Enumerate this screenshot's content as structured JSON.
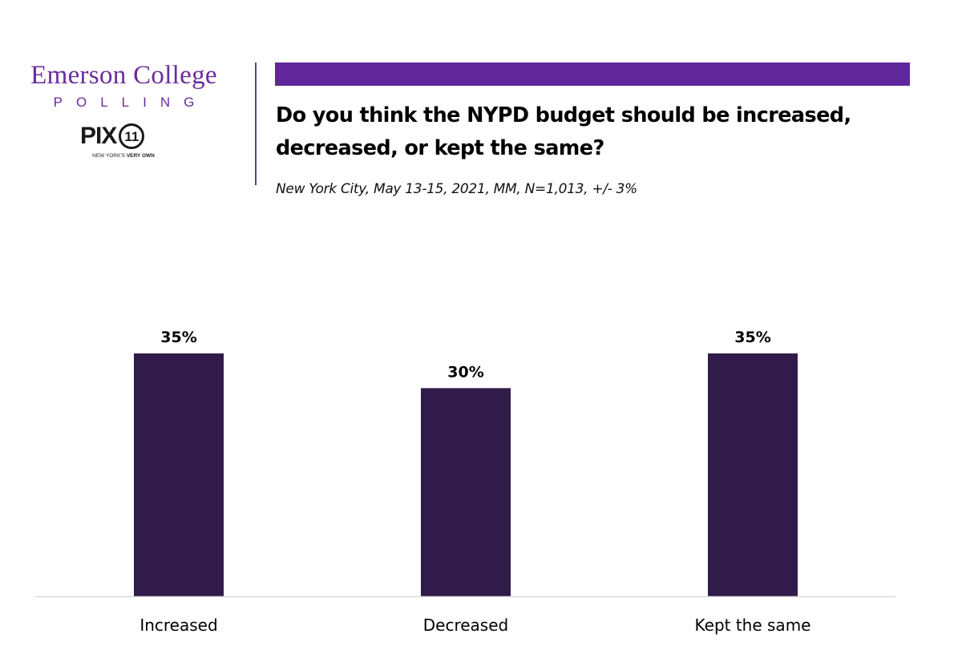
{
  "branding": {
    "org_name": "Emerson College",
    "org_sub": "POLLING",
    "partner_logo": "PIX",
    "partner_logo_number": "11",
    "partner_tagline_light": "NEW YORK'S",
    "partner_tagline_bold": "VERY OWN"
  },
  "colors": {
    "accent_purple": "#60279a",
    "bar_color": "#311b4a",
    "logo_purple": "#6a2c9a",
    "divider": "#3f4f86",
    "axis_line": "#d9d9d9"
  },
  "header": {
    "question": "Do you think the NYPD budget should be increased, decreased, or kept the same?",
    "subtitle": "New York City, May 13-15, 2021, MM, N=1,013, +/- 3%"
  },
  "chart_data": {
    "type": "bar",
    "title": "Do you think the NYPD budget should be increased, decreased, or kept the same?",
    "subtitle": "New York City, May 13-15, 2021, MM, N=1,013, +/- 3%",
    "categories": [
      "Increased",
      "Decreased",
      "Kept the same"
    ],
    "values": [
      35,
      30,
      35
    ],
    "data_labels": [
      "35%",
      "30%",
      "35%"
    ],
    "unit": "%",
    "xlabel": "",
    "ylabel": "",
    "ylim": [
      0,
      35
    ],
    "grid": false,
    "legend": "none"
  }
}
